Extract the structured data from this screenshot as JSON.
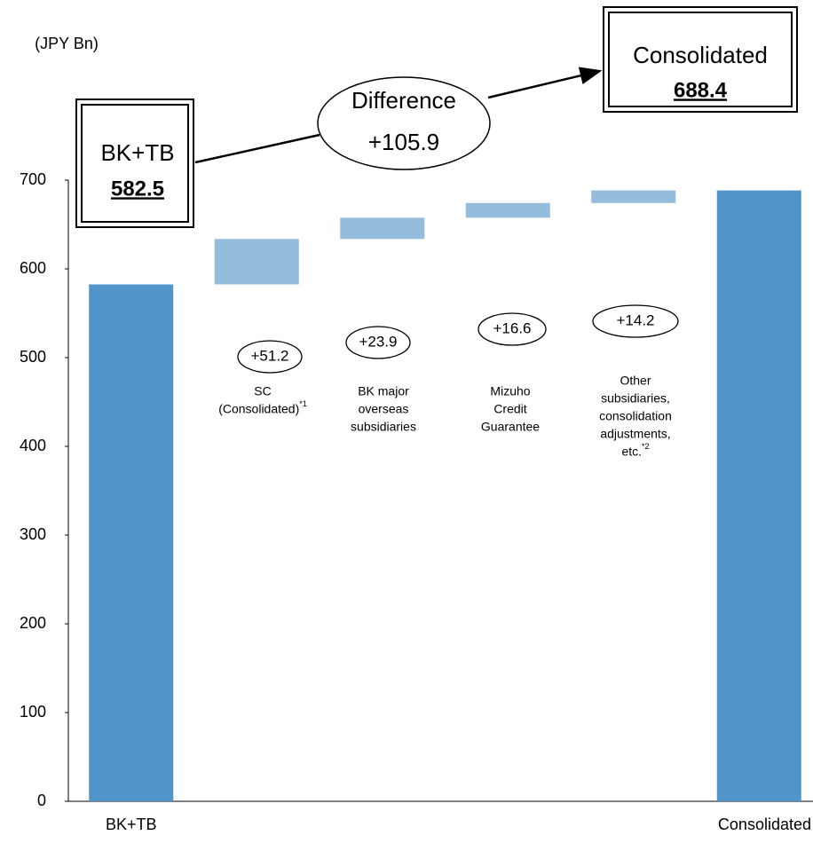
{
  "chart_data": {
    "type": "waterfall",
    "y_axis_label": "(JPY Bn)",
    "categories": [
      "BK+TB",
      null,
      null,
      null,
      null,
      "Consolidated"
    ],
    "measure": [
      "total",
      "relative",
      "relative",
      "relative",
      "relative",
      "total"
    ],
    "values": [
      582.5,
      51.2,
      23.9,
      16.6,
      14.2,
      688.4
    ],
    "value_labels": [
      null,
      "+51.2",
      "+23.9",
      "+16.6",
      "+14.2",
      null
    ],
    "descriptions": [
      null,
      [
        "SC",
        "(Consolidated)"
      ],
      [
        "BK major",
        "overseas",
        "subsidiaries"
      ],
      [
        "Mizuho",
        "Credit",
        "Guarantee"
      ],
      [
        "Other",
        "subsidiaries,",
        "consolidation",
        "adjustments,",
        "etc."
      ],
      null
    ],
    "footnote_marks": [
      null,
      "*1",
      null,
      null,
      "*2",
      null
    ],
    "difference": {
      "title": "Difference",
      "text": "+105.9"
    },
    "total_color": "#5094c9",
    "relative_color": "#94bcdc",
    "ylim": [
      0,
      700
    ],
    "yticks": [
      0,
      100,
      200,
      300,
      400,
      500,
      600,
      700
    ],
    "grid": false
  }
}
